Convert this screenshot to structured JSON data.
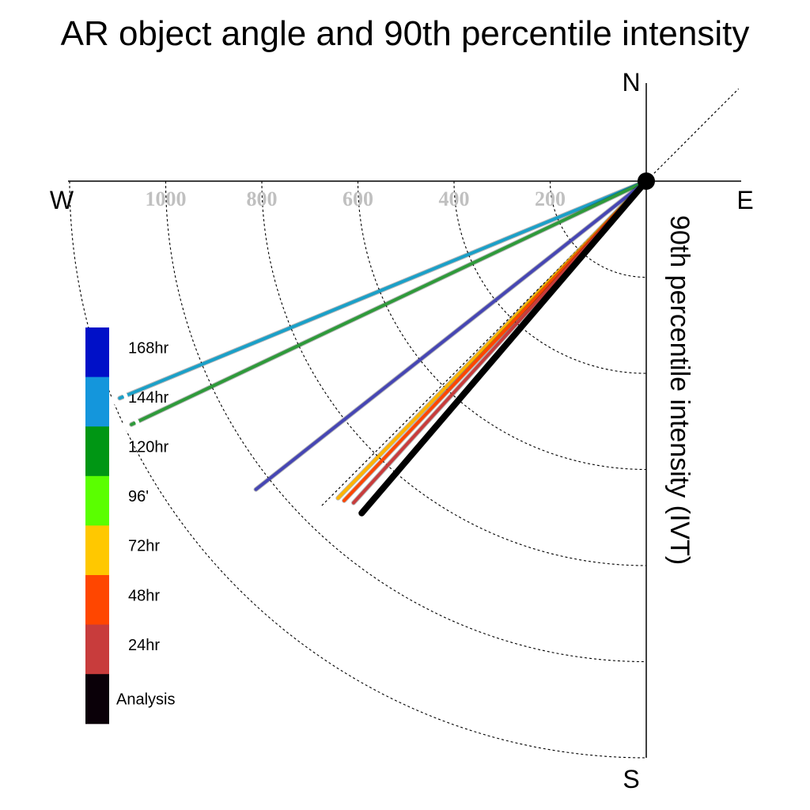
{
  "chart_data": {
    "type": "line",
    "title": "AR object angle and 90th percentile intensity",
    "ylabel": "90th percentile intensity (IVT)",
    "compass": {
      "north": "N",
      "south": "S",
      "west": "W",
      "east": "E"
    },
    "radial_ticks": [
      200,
      400,
      600,
      800,
      1000
    ],
    "radial_rings": [
      200,
      400,
      600,
      800,
      1000,
      1200
    ],
    "radial_max": 1200,
    "grid": true,
    "reference_angle_deg": 45,
    "legend": {
      "placement": "left",
      "items": [
        {
          "label": "168hr",
          "color": "#0010c8"
        },
        {
          "label": "144hr",
          "color": "#1496dc"
        },
        {
          "label": "120hr",
          "color": "#009614"
        },
        {
          "label": "96'",
          "color": "#5aff00"
        },
        {
          "label": "72hr",
          "color": "#ffc800"
        },
        {
          "label": "48hr",
          "color": "#ff4600"
        },
        {
          "label": "24hr",
          "color": "#c83c3c"
        },
        {
          "label": "Analysis",
          "color": "#0a0008"
        }
      ]
    },
    "series": [
      {
        "name": "144hr",
        "color": "#1aa0c8",
        "angle_from_west_deg": 22.4,
        "intensity": 1185
      },
      {
        "name": "120hr",
        "color": "#2e9a3a",
        "angle_from_west_deg": 25.3,
        "intensity": 1185
      },
      {
        "name": "168hr",
        "color": "#4646b4",
        "angle_from_west_deg": 38.3,
        "intensity": 1035
      },
      {
        "name": "72hr",
        "color": "#ffb400",
        "angle_from_west_deg": 45.8,
        "intensity": 920
      },
      {
        "name": "48hr",
        "color": "#ff4600",
        "angle_from_west_deg": 46.6,
        "intensity": 915
      },
      {
        "name": "24hr",
        "color": "#c83c3c",
        "angle_from_west_deg": 47.7,
        "intensity": 905
      },
      {
        "name": "Analysis",
        "color": "#000000",
        "angle_from_west_deg": 49.4,
        "intensity": 910
      }
    ]
  }
}
